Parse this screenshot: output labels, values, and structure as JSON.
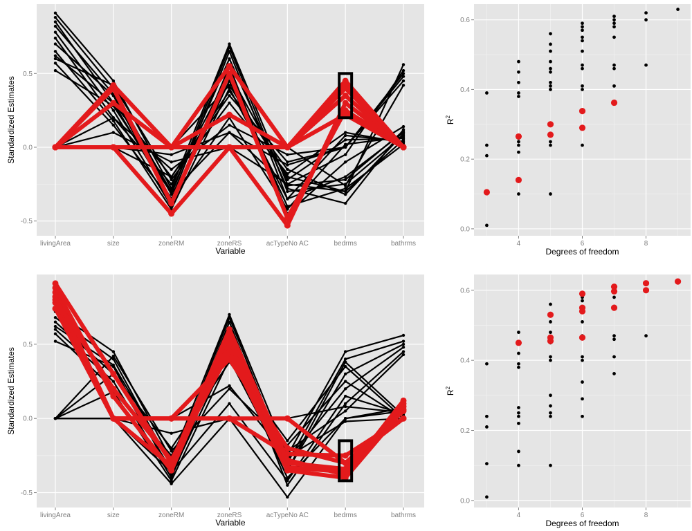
{
  "colors": {
    "panel_bg": "#e5e5e5",
    "grid": "#ffffff",
    "base": "#000000",
    "highlight": "#e31a1c",
    "tick_text": "#7f7f7f",
    "title_text": "#000000"
  },
  "chart_data": [
    {
      "type": "parallel-coordinates",
      "xlabel": "Variable",
      "ylabel": "Standardized Estimates",
      "categories": [
        "livingArea",
        "size",
        "zoneRM",
        "zoneRS",
        "acTypeNo AC",
        "bedrms",
        "bathrms"
      ],
      "yticks": [
        -0.5,
        0.0,
        0.5
      ],
      "ytick_labels": [
        "-0.5",
        "0.0",
        "0.5"
      ],
      "ylim": [
        -0.6,
        0.97
      ],
      "grid": true,
      "selection_box": {
        "category": "bedrms",
        "y_range": [
          0.2,
          0.5
        ]
      },
      "highlight_series": [
        {
          "values": [
            0.0,
            0.42,
            0.0,
            0.55,
            0.0,
            0.45,
            0.0
          ]
        },
        {
          "values": [
            0.0,
            0.3,
            0.0,
            0.0,
            0.0,
            0.4,
            0.0
          ]
        },
        {
          "values": [
            0.0,
            0.0,
            -0.45,
            0.0,
            0.0,
            0.42,
            0.0
          ]
        },
        {
          "values": [
            0.0,
            0.0,
            0.0,
            0.22,
            0.0,
            0.35,
            0.0
          ]
        },
        {
          "values": [
            0.0,
            0.0,
            0.0,
            0.0,
            -0.53,
            0.3,
            0.0
          ]
        },
        {
          "values": [
            0.0,
            0.4,
            -0.38,
            0.5,
            -0.48,
            0.25,
            0.0
          ]
        },
        {
          "values": [
            0.0,
            0.0,
            0.0,
            0.0,
            0.0,
            0.22,
            0.0
          ]
        }
      ],
      "base_series": [
        {
          "values": [
            0.91,
            0.45,
            -0.28,
            0.7,
            -0.25,
            -0.3,
            0.05
          ]
        },
        {
          "values": [
            0.88,
            0.4,
            -0.32,
            0.68,
            -0.3,
            -0.25,
            0.08
          ]
        },
        {
          "values": [
            0.85,
            0.3,
            -0.35,
            0.65,
            -0.35,
            -0.2,
            0.1
          ]
        },
        {
          "values": [
            0.82,
            0.36,
            -0.3,
            0.6,
            -0.28,
            -0.38,
            0.12
          ]
        },
        {
          "values": [
            0.78,
            0.25,
            -0.4,
            0.55,
            -0.45,
            -0.1,
            0.14
          ]
        },
        {
          "values": [
            0.74,
            0.2,
            -0.25,
            0.5,
            -0.22,
            0.05,
            0.06
          ]
        },
        {
          "values": [
            0.7,
            0.35,
            -0.38,
            0.45,
            -0.4,
            -0.28,
            0.02
          ]
        },
        {
          "values": [
            0.65,
            0.18,
            -0.42,
            0.4,
            -0.35,
            0.08,
            0.04
          ]
        },
        {
          "values": [
            0.62,
            0.3,
            -0.2,
            0.38,
            -0.15,
            -0.32,
            0.09
          ]
        },
        {
          "values": [
            0.6,
            0.42,
            -0.22,
            0.3,
            -0.18,
            0.1,
            0.03
          ]
        },
        {
          "values": [
            0.57,
            0.15,
            -0.36,
            0.2,
            -0.42,
            0.02,
            0.07
          ]
        },
        {
          "values": [
            0.52,
            0.28,
            -0.31,
            0.1,
            -0.26,
            -0.22,
            0.11
          ]
        },
        {
          "values": [
            0.0,
            0.0,
            -0.2,
            0.35,
            -0.1,
            0.0,
            0.48
          ]
        },
        {
          "values": [
            0.0,
            0.0,
            0.0,
            0.0,
            -0.25,
            -0.05,
            0.52
          ]
        },
        {
          "values": [
            0.0,
            0.2,
            -0.15,
            0.15,
            -0.05,
            0.0,
            0.45
          ]
        },
        {
          "values": [
            0.0,
            0.0,
            0.0,
            0.42,
            -0.2,
            -0.3,
            0.56
          ]
        },
        {
          "values": [
            0.0,
            0.1,
            -0.1,
            0.0,
            0.0,
            -0.26,
            0.42
          ]
        },
        {
          "values": [
            0.0,
            0.0,
            -0.05,
            0.1,
            -0.12,
            0.0,
            0.5
          ]
        }
      ]
    },
    {
      "type": "scatter",
      "xlabel": "Degrees of freedom",
      "ylabel_base": "R",
      "ylabel_sup": "2",
      "xticks": [
        4,
        6,
        8
      ],
      "xtick_labels": [
        "4",
        "6",
        "8"
      ],
      "yticks": [
        0.0,
        0.2,
        0.4,
        0.6
      ],
      "ytick_labels": [
        "0.0",
        "0.2",
        "0.4",
        "0.6"
      ],
      "xlim": [
        2.6,
        9.4
      ],
      "ylim": [
        -0.02,
        0.645
      ],
      "grid": true,
      "base_points": [
        [
          3,
          0.39
        ],
        [
          3,
          0.24
        ],
        [
          3,
          0.21
        ],
        [
          3,
          0.01
        ],
        [
          4,
          0.48
        ],
        [
          4,
          0.45
        ],
        [
          4,
          0.42
        ],
        [
          4,
          0.39
        ],
        [
          4,
          0.38
        ],
        [
          4,
          0.26
        ],
        [
          4,
          0.25
        ],
        [
          4,
          0.24
        ],
        [
          4,
          0.22
        ],
        [
          4,
          0.14
        ],
        [
          4,
          0.1
        ],
        [
          5,
          0.56
        ],
        [
          5,
          0.53
        ],
        [
          5,
          0.51
        ],
        [
          5,
          0.48
        ],
        [
          5,
          0.46
        ],
        [
          5,
          0.45
        ],
        [
          5,
          0.42
        ],
        [
          5,
          0.41
        ],
        [
          5,
          0.4
        ],
        [
          5,
          0.3
        ],
        [
          5,
          0.27
        ],
        [
          5,
          0.25
        ],
        [
          5,
          0.24
        ],
        [
          5,
          0.1
        ],
        [
          6,
          0.59
        ],
        [
          6,
          0.58
        ],
        [
          6,
          0.57
        ],
        [
          6,
          0.55
        ],
        [
          6,
          0.54
        ],
        [
          6,
          0.51
        ],
        [
          6,
          0.47
        ],
        [
          6,
          0.46
        ],
        [
          6,
          0.41
        ],
        [
          6,
          0.4
        ],
        [
          6,
          0.34
        ],
        [
          6,
          0.29
        ],
        [
          6,
          0.24
        ],
        [
          7,
          0.61
        ],
        [
          7,
          0.6
        ],
        [
          7,
          0.59
        ],
        [
          7,
          0.58
        ],
        [
          7,
          0.55
        ],
        [
          7,
          0.47
        ],
        [
          7,
          0.46
        ],
        [
          7,
          0.41
        ],
        [
          8,
          0.62
        ],
        [
          8,
          0.6
        ],
        [
          8,
          0.47
        ],
        [
          9,
          0.63
        ]
      ],
      "highlight_points": [
        [
          3,
          0.105
        ],
        [
          4,
          0.265
        ],
        [
          4,
          0.14
        ],
        [
          5,
          0.3
        ],
        [
          5,
          0.27
        ],
        [
          6,
          0.338
        ],
        [
          6,
          0.29
        ],
        [
          7,
          0.362
        ]
      ]
    },
    {
      "type": "parallel-coordinates",
      "xlabel": "Variable",
      "ylabel": "Standardized Estimates",
      "categories": [
        "livingArea",
        "size",
        "zoneRM",
        "zoneRS",
        "acTypeNo AC",
        "bedrms",
        "bathrms"
      ],
      "yticks": [
        -0.5,
        0.0,
        0.5
      ],
      "ytick_labels": [
        "-0.5",
        "0.0",
        "0.5"
      ],
      "ylim": [
        -0.6,
        0.97
      ],
      "grid": true,
      "selection_box": {
        "category": "bedrms",
        "y_range": [
          -0.42,
          -0.15
        ]
      },
      "highlight_series": [
        {
          "values": [
            0.91,
            0.3,
            -0.3,
            0.6,
            -0.28,
            -0.38,
            0.12
          ]
        },
        {
          "values": [
            0.88,
            0.15,
            -0.35,
            0.55,
            -0.33,
            -0.36,
            0.1
          ]
        },
        {
          "values": [
            0.85,
            0.0,
            -0.32,
            0.5,
            -0.3,
            -0.34,
            0.08
          ]
        },
        {
          "values": [
            0.82,
            0.0,
            0.0,
            0.4,
            -0.2,
            -0.3,
            0.05
          ]
        },
        {
          "values": [
            0.78,
            0.0,
            0.0,
            0.0,
            -0.24,
            -0.25,
            0.0
          ]
        },
        {
          "values": [
            0.74,
            0.0,
            0.0,
            0.0,
            0.0,
            -0.3,
            0.0
          ]
        },
        {
          "values": [
            0.8,
            0.2,
            -0.28,
            0.45,
            -0.35,
            -0.4,
            0.06
          ]
        }
      ],
      "base_series": [
        {
          "values": [
            0.72,
            0.45,
            -0.28,
            0.7,
            -0.25,
            0.45,
            0.56
          ]
        },
        {
          "values": [
            0.68,
            0.4,
            -0.32,
            0.68,
            -0.3,
            0.4,
            0.52
          ]
        },
        {
          "values": [
            0.65,
            0.3,
            -0.35,
            0.65,
            -0.35,
            0.3,
            0.5
          ]
        },
        {
          "values": [
            0.62,
            0.36,
            -0.3,
            0.6,
            -0.28,
            0.2,
            0.48
          ]
        },
        {
          "values": [
            0.6,
            0.25,
            -0.4,
            0.55,
            -0.45,
            0.1,
            0.45
          ]
        },
        {
          "values": [
            0.57,
            0.2,
            -0.25,
            0.5,
            -0.22,
            0.05,
            0.43
          ]
        },
        {
          "values": [
            0.52,
            0.35,
            -0.38,
            0.45,
            -0.4,
            0.0,
            0.05
          ]
        },
        {
          "values": [
            0.0,
            0.18,
            -0.42,
            0.4,
            -0.35,
            0.38,
            0.02
          ]
        },
        {
          "values": [
            0.0,
            0.3,
            -0.2,
            0.38,
            -0.15,
            0.35,
            0.0
          ]
        },
        {
          "values": [
            0.0,
            0.42,
            -0.22,
            0.2,
            -0.18,
            0.25,
            0.0
          ]
        },
        {
          "values": [
            0.0,
            0.0,
            -0.36,
            0.1,
            -0.42,
            0.15,
            0.03
          ]
        },
        {
          "values": [
            0.0,
            0.0,
            -0.44,
            0.0,
            -0.53,
            0.0,
            0.07
          ]
        },
        {
          "values": [
            0.0,
            0.0,
            0.0,
            0.22,
            -0.26,
            -0.02,
            0.0
          ]
        },
        {
          "values": [
            0.0,
            0.0,
            -0.1,
            0.0,
            0.0,
            0.08,
            0.04
          ]
        }
      ]
    },
    {
      "type": "scatter",
      "xlabel": "Degrees of freedom",
      "ylabel_base": "R",
      "ylabel_sup": "2",
      "xticks": [
        4,
        6,
        8
      ],
      "xtick_labels": [
        "4",
        "6",
        "8"
      ],
      "yticks": [
        0.0,
        0.2,
        0.4,
        0.6
      ],
      "ytick_labels": [
        "0.0",
        "0.2",
        "0.4",
        "0.6"
      ],
      "xlim": [
        2.6,
        9.4
      ],
      "ylim": [
        -0.02,
        0.645
      ],
      "grid": true,
      "base_points": [
        [
          3,
          0.39
        ],
        [
          3,
          0.24
        ],
        [
          3,
          0.21
        ],
        [
          3,
          0.105
        ],
        [
          3,
          0.01
        ],
        [
          4,
          0.48
        ],
        [
          4,
          0.45
        ],
        [
          4,
          0.42
        ],
        [
          4,
          0.39
        ],
        [
          4,
          0.38
        ],
        [
          4,
          0.265
        ],
        [
          4,
          0.25
        ],
        [
          4,
          0.24
        ],
        [
          4,
          0.22
        ],
        [
          4,
          0.14
        ],
        [
          4,
          0.1
        ],
        [
          5,
          0.56
        ],
        [
          5,
          0.51
        ],
        [
          5,
          0.48
        ],
        [
          5,
          0.45
        ],
        [
          5,
          0.41
        ],
        [
          5,
          0.4
        ],
        [
          5,
          0.3
        ],
        [
          5,
          0.27
        ],
        [
          5,
          0.25
        ],
        [
          5,
          0.24
        ],
        [
          5,
          0.1
        ],
        [
          6,
          0.58
        ],
        [
          6,
          0.57
        ],
        [
          6,
          0.51
        ],
        [
          6,
          0.47
        ],
        [
          6,
          0.41
        ],
        [
          6,
          0.4
        ],
        [
          6,
          0.338
        ],
        [
          6,
          0.29
        ],
        [
          6,
          0.24
        ],
        [
          7,
          0.58
        ],
        [
          7,
          0.47
        ],
        [
          7,
          0.46
        ],
        [
          7,
          0.41
        ],
        [
          7,
          0.362
        ],
        [
          8,
          0.47
        ]
      ],
      "highlight_points": [
        [
          4,
          0.45
        ],
        [
          5,
          0.53
        ],
        [
          5,
          0.465
        ],
        [
          5,
          0.455
        ],
        [
          6,
          0.59
        ],
        [
          6,
          0.55
        ],
        [
          6,
          0.54
        ],
        [
          6,
          0.465
        ],
        [
          7,
          0.61
        ],
        [
          7,
          0.597
        ],
        [
          7,
          0.55
        ],
        [
          8,
          0.62
        ],
        [
          8,
          0.6
        ],
        [
          9,
          0.625
        ]
      ]
    }
  ]
}
